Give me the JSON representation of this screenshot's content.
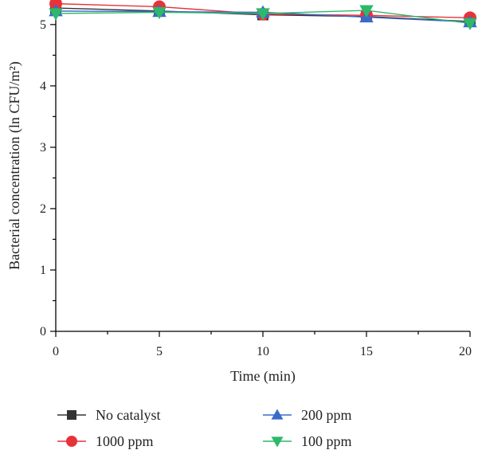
{
  "chart_data": {
    "type": "line",
    "xlabel": "Time (min)",
    "ylabel": "Bacterial concentration (ln CFU/m²)",
    "xlim": [
      0,
      20
    ],
    "ylim": [
      0,
      5.4
    ],
    "x_ticks": [
      "0",
      "5",
      "10",
      "15",
      "20"
    ],
    "y_ticks": [
      "0",
      "1",
      "2",
      "3",
      "4",
      "5"
    ],
    "x": [
      0,
      5,
      10,
      15,
      20
    ],
    "grid": false,
    "legend_position": "bottom",
    "series": [
      {
        "name": "No catalyst",
        "values": [
          5.27,
          5.22,
          5.16,
          5.13,
          5.05
        ],
        "color": "#333333",
        "marker": "square"
      },
      {
        "name": "1000 ppm",
        "values": [
          5.34,
          5.29,
          5.17,
          5.15,
          5.11
        ],
        "color": "#e8323a",
        "marker": "circle"
      },
      {
        "name": "200 ppm",
        "values": [
          5.22,
          5.21,
          5.2,
          5.12,
          5.04
        ],
        "color": "#3a6bc9",
        "marker": "triangle-up"
      },
      {
        "name": "100 ppm",
        "values": [
          5.18,
          5.2,
          5.18,
          5.23,
          5.02
        ],
        "color": "#2eb86a",
        "marker": "triangle-down"
      }
    ]
  }
}
